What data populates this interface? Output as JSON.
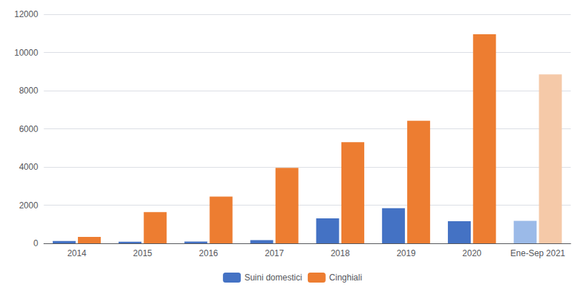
{
  "chart_data": {
    "type": "bar",
    "categories": [
      "2014",
      "2015",
      "2016",
      "2017",
      "2018",
      "2019",
      "2020",
      "Ene-Sep 2021"
    ],
    "series": [
      {
        "name": "Suini domestici",
        "color": "#4472C4",
        "colors": [
          "#4472C4",
          "#4472C4",
          "#4472C4",
          "#4472C4",
          "#4472C4",
          "#4472C4",
          "#4472C4",
          "#9BBAE8"
        ],
        "values": [
          120,
          80,
          90,
          170,
          1310,
          1840,
          1160,
          1175
        ]
      },
      {
        "name": "Cinghiali",
        "color": "#ED7D31",
        "colors": [
          "#ED7D31",
          "#ED7D31",
          "#ED7D31",
          "#ED7D31",
          "#ED7D31",
          "#ED7D31",
          "#ED7D31",
          "#F5C9A8"
        ],
        "values": [
          340,
          1640,
          2450,
          3950,
          5300,
          6420,
          10950,
          8850
        ]
      }
    ],
    "ylim": [
      0,
      12000
    ],
    "yticks": [
      0,
      2000,
      4000,
      6000,
      8000,
      10000,
      12000
    ],
    "grid": true,
    "legend": "bottom"
  }
}
